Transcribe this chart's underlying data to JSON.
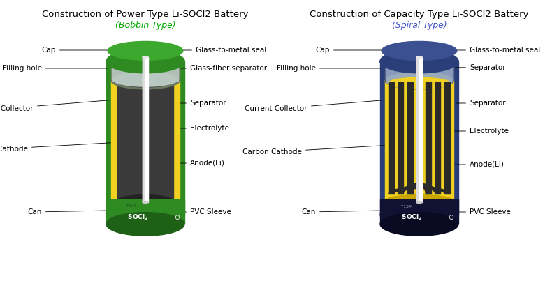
{
  "title_left": "Construction of Power Type Li-SOCl2 Battery",
  "subtitle_left": "(Bobbin Type)",
  "title_right": "Construction of Capacity Type Li-SOCl2 Battery",
  "subtitle_right": "(Spiral Type)",
  "title_fontsize": 9.5,
  "subtitle_fontsize": 9.0,
  "label_fontsize": 7.5,
  "bg_color": "#ffffff",
  "green_subtitle": "#00aa00",
  "blue_subtitle": "#4455cc",
  "body_green": "#2d8b22",
  "body_blue": "#2a3f7a",
  "yellow_color": "#f0d020",
  "dark_carbon": "#3a3a3a",
  "white": "#ffffff"
}
